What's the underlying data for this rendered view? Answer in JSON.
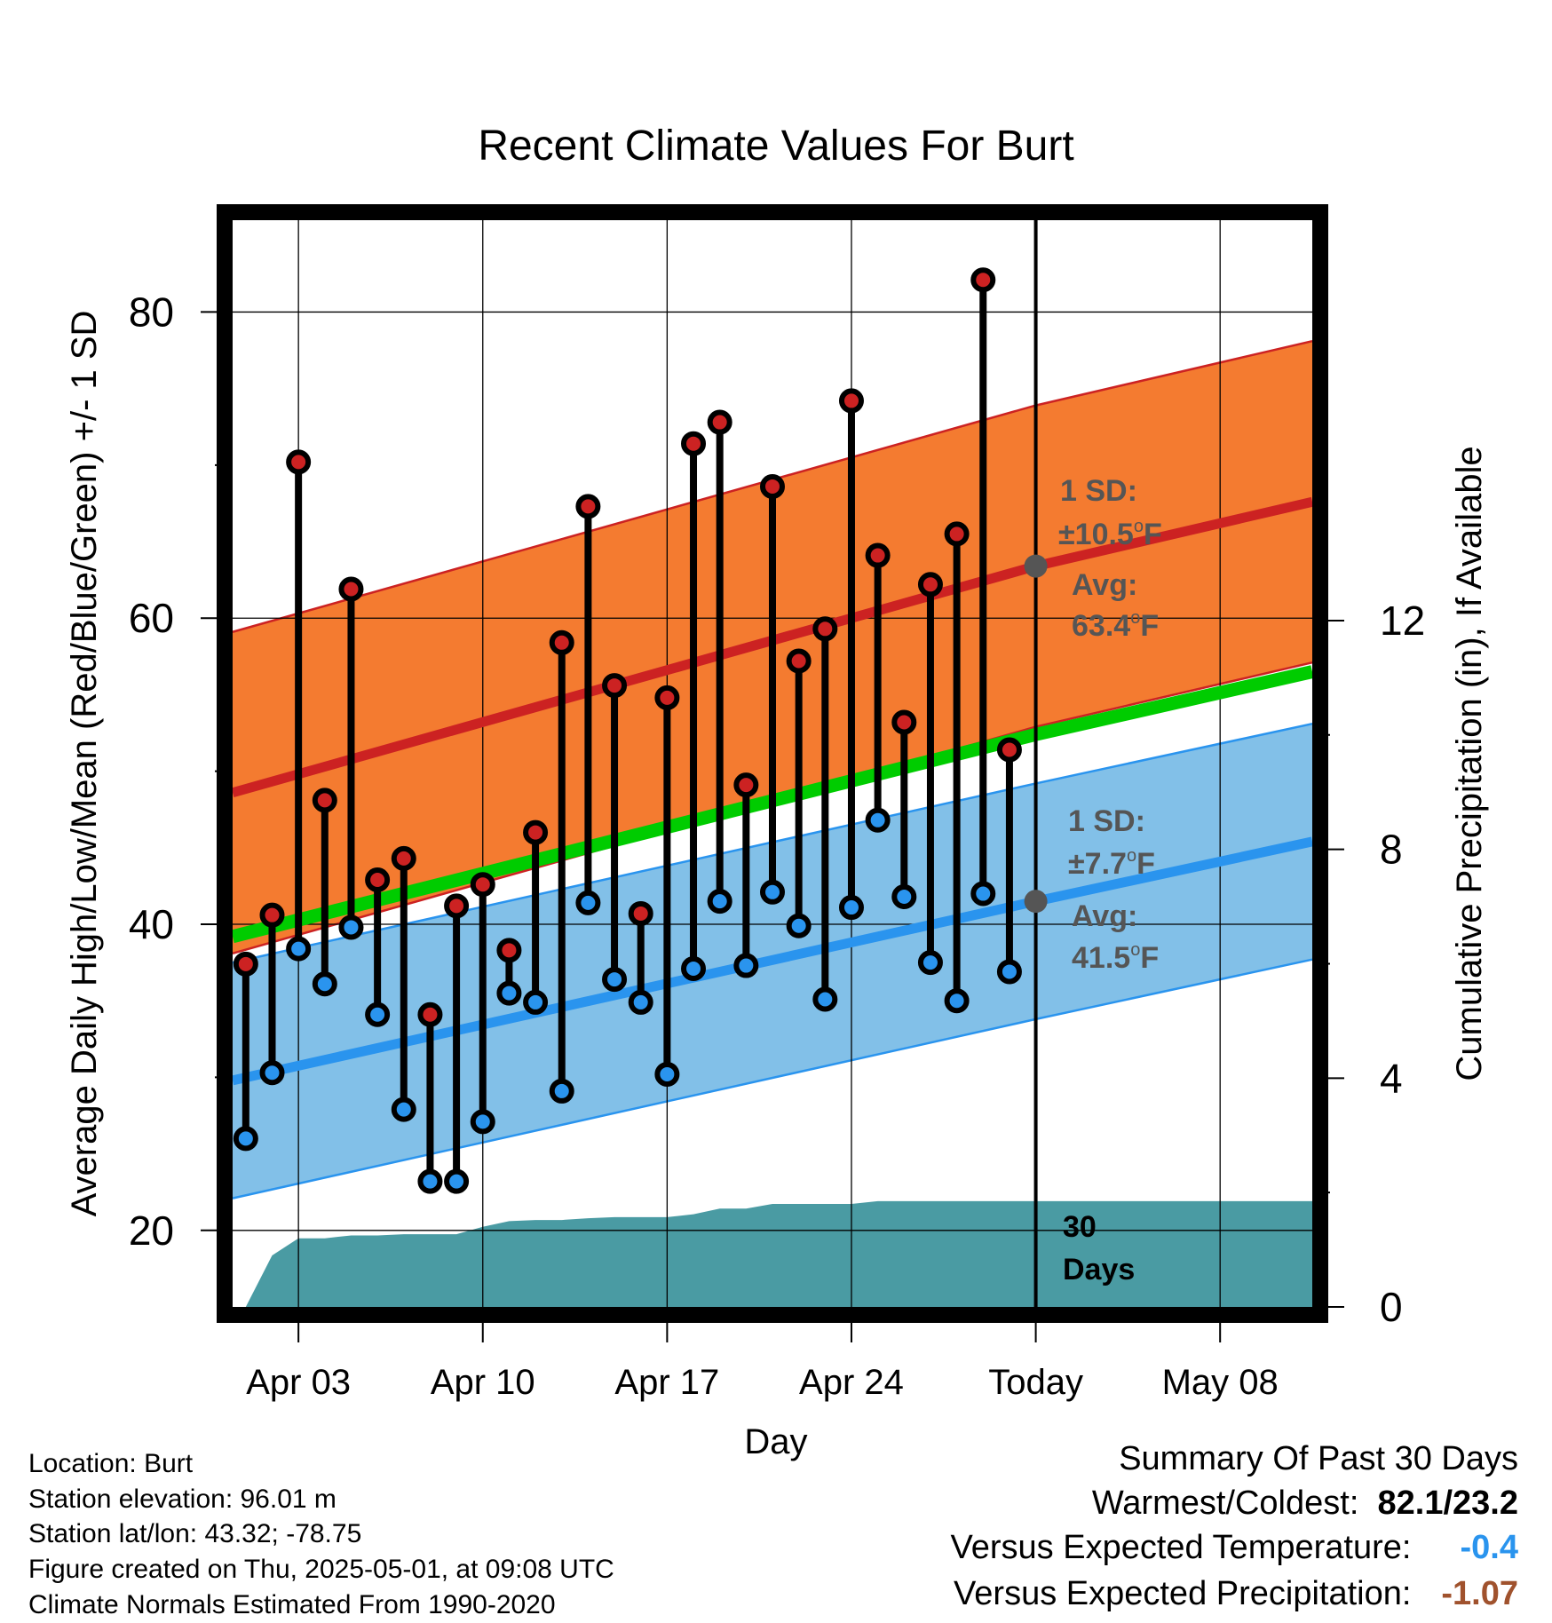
{
  "chart_data": {
    "type": "line",
    "title": "Recent Climate Values For Burt",
    "xlabel": "Day",
    "ylabel": "Average Daily High/Low/Mean (Red/Blue/Green) +/- 1 SD",
    "y2label": "Cumulative Precipitation (in), If Available",
    "ylim": [
      15,
      86
    ],
    "y2lim": [
      0,
      19
    ],
    "yticks": [
      20,
      40,
      60,
      80
    ],
    "y2ticks": [
      0,
      4,
      8,
      12
    ],
    "x_start": "Mar 31",
    "x_end": "May 12",
    "xtick_labels": [
      "Apr 03",
      "Apr 10",
      "Apr 17",
      "Apr 24",
      "Today",
      "May 08"
    ],
    "xtick_days": [
      3,
      10,
      17,
      24,
      31,
      38
    ],
    "grid": true,
    "normals": {
      "x": [
        0.5,
        31,
        41.5
      ],
      "avg_high": [
        48.6,
        63.4,
        67.6
      ],
      "high_sd": 10.5,
      "avg_low": [
        29.8,
        41.5,
        45.4
      ],
      "low_sd": 7.7,
      "avg_mean": [
        39.2,
        52.4,
        56.5
      ]
    },
    "series": [
      {
        "name": "High",
        "x": [
          1,
          2,
          3,
          4,
          5,
          6,
          7,
          8,
          9,
          10,
          11,
          12,
          13,
          14,
          15,
          16,
          17,
          18,
          19,
          20,
          21,
          22,
          23,
          24,
          25,
          26,
          27,
          28,
          29,
          30
        ],
        "values": [
          37.4,
          40.6,
          70.2,
          48.1,
          61.9,
          42.9,
          44.3,
          34.1,
          41.2,
          42.6,
          38.3,
          46.0,
          58.4,
          67.3,
          55.6,
          40.7,
          54.8,
          71.4,
          72.8,
          49.1,
          68.6,
          57.2,
          59.3,
          74.2,
          64.1,
          53.2,
          62.2,
          65.5,
          82.1,
          51.4
        ],
        "color": "#cc2222"
      },
      {
        "name": "Low",
        "x": [
          1,
          2,
          3,
          4,
          5,
          6,
          7,
          8,
          9,
          10,
          11,
          12,
          13,
          14,
          15,
          16,
          17,
          18,
          19,
          20,
          21,
          22,
          23,
          24,
          25,
          26,
          27,
          28,
          29,
          30
        ],
        "values": [
          26.0,
          30.3,
          38.4,
          36.1,
          39.8,
          34.1,
          27.9,
          23.2,
          23.2,
          27.1,
          35.5,
          34.9,
          29.1,
          41.4,
          36.4,
          34.9,
          30.2,
          37.1,
          41.5,
          37.3,
          42.1,
          39.9,
          35.1,
          41.1,
          46.8,
          41.8,
          37.5,
          35.0,
          42.0,
          36.9
        ],
        "color": "#2a94ee"
      },
      {
        "name": "Cumulative Precipitation",
        "x": [
          1,
          2,
          3,
          4,
          5,
          6,
          7,
          8,
          9,
          10,
          11,
          12,
          13,
          14,
          15,
          16,
          17,
          18,
          19,
          20,
          21,
          22,
          23,
          24,
          25,
          26,
          27,
          28,
          29,
          30,
          31,
          41.5
        ],
        "values": [
          0,
          0.9,
          1.2,
          1.2,
          1.25,
          1.25,
          1.27,
          1.27,
          1.27,
          1.4,
          1.5,
          1.52,
          1.52,
          1.55,
          1.57,
          1.57,
          1.57,
          1.62,
          1.72,
          1.72,
          1.8,
          1.8,
          1.8,
          1.8,
          1.85,
          1.85,
          1.85,
          1.85,
          1.85,
          1.85,
          1.85,
          1.85
        ],
        "color": "#4a9ba3"
      }
    ],
    "annotations": {
      "high_sd_label": "1 SD:",
      "high_sd_value": "±10.5",
      "high_avg_label": "Avg:",
      "high_avg_value": "63.4",
      "low_sd_label": "1 SD:",
      "low_sd_value": "±7.7",
      "low_avg_label": "Avg:",
      "low_avg_value": "41.5",
      "degree_o": "o",
      "unit_f": "F",
      "period_label_1": "30",
      "period_label_2": "Days"
    },
    "colors": {
      "high_band": "#f47b30",
      "high_line": "#cc2222",
      "low_band": "#82c0e8",
      "low_line": "#2a94ee",
      "mean_line": "#00cc00",
      "precip": "#4a9ba3",
      "annotation_text": "#555555"
    }
  },
  "station": {
    "location": "Location: Burt",
    "elevation": "Station elevation: 96.01 m",
    "latlon": "Station lat/lon: 43.32; -78.75",
    "created": "Figure created on Thu, 2025-05-01, at 09:08 UTC",
    "normals": "Climate Normals Estimated From 1990-2020"
  },
  "summary": {
    "title": "Summary Of Past 30 Days",
    "warmest_label": "Warmest/Coldest:",
    "warmest_value": "82.1/23.2",
    "temp_label": "Versus Expected Temperature:",
    "temp_value": "-0.4",
    "temp_color": "#2a94ee",
    "precip_label": "Versus Expected Precipitation:",
    "precip_value": "-1.07",
    "precip_color": "#a0522d"
  }
}
